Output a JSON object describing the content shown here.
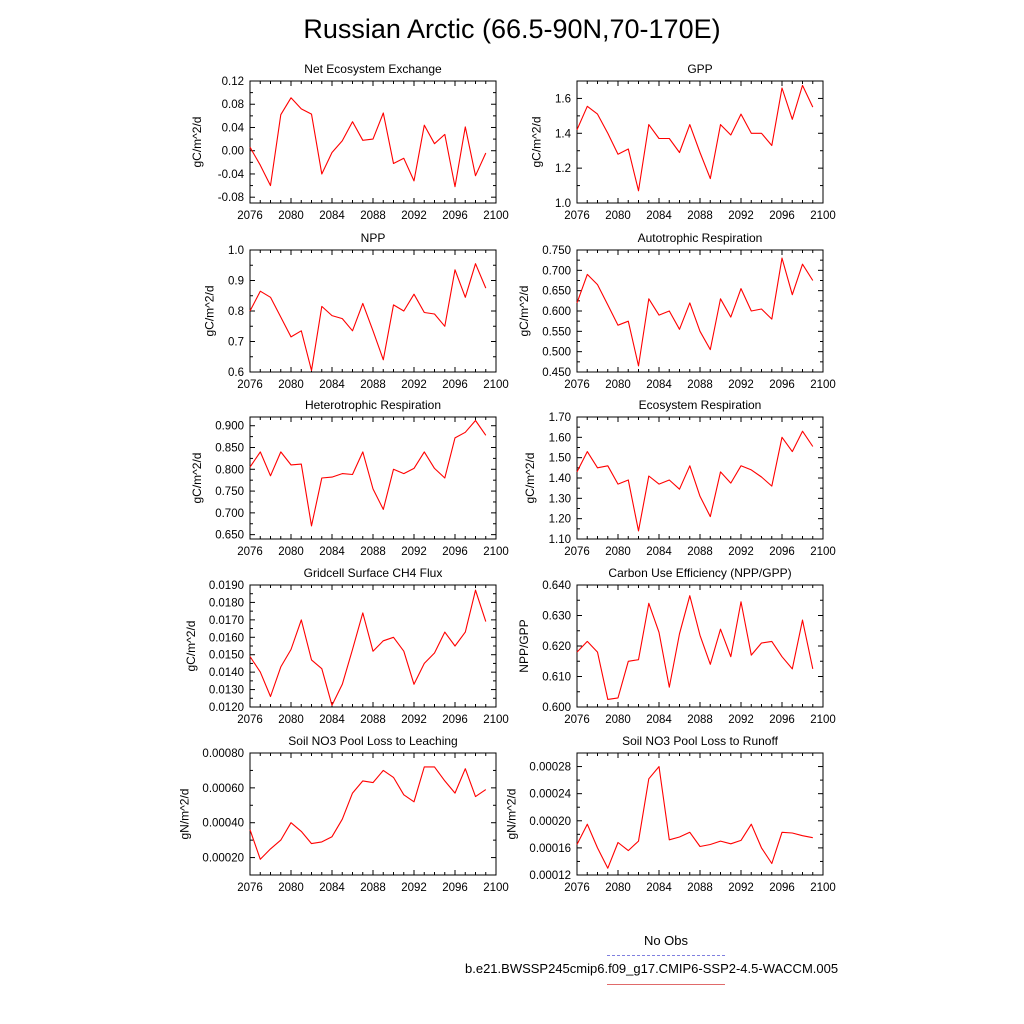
{
  "title": "Russian Arctic (66.5-90N,70-170E)",
  "colors": {
    "series": "#ff0000",
    "axis": "#000000",
    "obs": "#7f7fdf"
  },
  "legend": {
    "obs_label": "No Obs",
    "model_label": "b.e21.BWSSP245cmip6.f09_g17.CMIP6-SSP2-4.5-WACCM.005"
  },
  "chart_data": [
    {
      "type": "line",
      "title": "Net Ecosystem Exchange",
      "ylabel": "gC/m^2/d",
      "xlabel": "",
      "xlim": [
        2076,
        2100
      ],
      "ylim": [
        -0.09,
        0.12
      ],
      "xticks": [
        "2076",
        "2080",
        "2084",
        "2088",
        "2092",
        "2096",
        "2100"
      ],
      "yticks": [
        "-0.08",
        "-0.04",
        "0.00",
        "0.04",
        "0.08",
        "0.12"
      ],
      "ytick_values": [
        -0.08,
        -0.04,
        0.0,
        0.04,
        0.08,
        0.12
      ],
      "x": [
        2076,
        2077,
        2078,
        2079,
        2080,
        2081,
        2082,
        2083,
        2084,
        2085,
        2086,
        2087,
        2088,
        2089,
        2090,
        2091,
        2092,
        2093,
        2094,
        2095,
        2096,
        2097,
        2098,
        2099
      ],
      "values": [
        0.006,
        -0.025,
        -0.06,
        0.062,
        0.091,
        0.072,
        0.063,
        -0.04,
        -0.003,
        0.017,
        0.05,
        0.018,
        0.02,
        0.065,
        -0.022,
        -0.013,
        -0.052,
        0.044,
        0.012,
        0.028,
        -0.062,
        0.041,
        -0.043,
        -0.004
      ]
    },
    {
      "type": "line",
      "title": "GPP",
      "ylabel": "gC/m^2/d",
      "xlabel": "",
      "xlim": [
        2076,
        2100
      ],
      "ylim": [
        1.0,
        1.7
      ],
      "xticks": [
        "2076",
        "2080",
        "2084",
        "2088",
        "2092",
        "2096",
        "2100"
      ],
      "yticks": [
        "1.0",
        "1.2",
        "1.4",
        "1.6"
      ],
      "ytick_values": [
        1.0,
        1.2,
        1.4,
        1.6
      ],
      "x": [
        2076,
        2077,
        2078,
        2079,
        2080,
        2081,
        2082,
        2083,
        2084,
        2085,
        2086,
        2087,
        2088,
        2089,
        2090,
        2091,
        2092,
        2093,
        2094,
        2095,
        2096,
        2097,
        2098,
        2099
      ],
      "values": [
        1.42,
        1.555,
        1.51,
        1.4,
        1.28,
        1.31,
        1.07,
        1.45,
        1.37,
        1.37,
        1.29,
        1.45,
        1.29,
        1.14,
        1.45,
        1.39,
        1.51,
        1.4,
        1.4,
        1.33,
        1.66,
        1.48,
        1.675,
        1.55
      ]
    },
    {
      "type": "line",
      "title": "NPP",
      "ylabel": "gC/m^2/d",
      "xlabel": "",
      "xlim": [
        2076,
        2100
      ],
      "ylim": [
        0.6,
        1.0
      ],
      "xticks": [
        "2076",
        "2080",
        "2084",
        "2088",
        "2092",
        "2096",
        "2100"
      ],
      "yticks": [
        "0.6",
        "0.7",
        "0.8",
        "0.9",
        "1.0"
      ],
      "ytick_values": [
        0.6,
        0.7,
        0.8,
        0.9,
        1.0
      ],
      "x": [
        2076,
        2077,
        2078,
        2079,
        2080,
        2081,
        2082,
        2083,
        2084,
        2085,
        2086,
        2087,
        2088,
        2089,
        2090,
        2091,
        2092,
        2093,
        2094,
        2095,
        2096,
        2097,
        2098,
        2099
      ],
      "values": [
        0.8,
        0.865,
        0.845,
        0.78,
        0.715,
        0.735,
        0.605,
        0.815,
        0.785,
        0.775,
        0.735,
        0.825,
        0.735,
        0.64,
        0.82,
        0.8,
        0.855,
        0.795,
        0.79,
        0.75,
        0.935,
        0.845,
        0.955,
        0.875
      ]
    },
    {
      "type": "line",
      "title": "Autotrophic Respiration",
      "ylabel": "gC/m^2/d",
      "xlabel": "",
      "xlim": [
        2076,
        2100
      ],
      "ylim": [
        0.45,
        0.75
      ],
      "xticks": [
        "2076",
        "2080",
        "2084",
        "2088",
        "2092",
        "2096",
        "2100"
      ],
      "yticks": [
        "0.450",
        "0.500",
        "0.550",
        "0.600",
        "0.650",
        "0.700",
        "0.750"
      ],
      "ytick_values": [
        0.45,
        0.5,
        0.55,
        0.6,
        0.65,
        0.7,
        0.75
      ],
      "x": [
        2076,
        2077,
        2078,
        2079,
        2080,
        2081,
        2082,
        2083,
        2084,
        2085,
        2086,
        2087,
        2088,
        2089,
        2090,
        2091,
        2092,
        2093,
        2094,
        2095,
        2096,
        2097,
        2098,
        2099
      ],
      "values": [
        0.62,
        0.69,
        0.665,
        0.615,
        0.565,
        0.575,
        0.465,
        0.63,
        0.59,
        0.6,
        0.555,
        0.62,
        0.55,
        0.505,
        0.63,
        0.585,
        0.655,
        0.6,
        0.605,
        0.58,
        0.73,
        0.64,
        0.715,
        0.675
      ]
    },
    {
      "type": "line",
      "title": "Heterotrophic Respiration",
      "ylabel": "gC/m^2/d",
      "xlabel": "",
      "xlim": [
        2076,
        2100
      ],
      "ylim": [
        0.64,
        0.92
      ],
      "xticks": [
        "2076",
        "2080",
        "2084",
        "2088",
        "2092",
        "2096",
        "2100"
      ],
      "yticks": [
        "0.650",
        "0.700",
        "0.750",
        "0.800",
        "0.850",
        "0.900"
      ],
      "ytick_values": [
        0.65,
        0.7,
        0.75,
        0.8,
        0.85,
        0.9
      ],
      "x": [
        2076,
        2077,
        2078,
        2079,
        2080,
        2081,
        2082,
        2083,
        2084,
        2085,
        2086,
        2087,
        2088,
        2089,
        2090,
        2091,
        2092,
        2093,
        2094,
        2095,
        2096,
        2097,
        2098,
        2099
      ],
      "values": [
        0.805,
        0.84,
        0.785,
        0.84,
        0.81,
        0.812,
        0.67,
        0.78,
        0.782,
        0.79,
        0.788,
        0.84,
        0.755,
        0.708,
        0.8,
        0.79,
        0.802,
        0.84,
        0.802,
        0.78,
        0.872,
        0.885,
        0.912,
        0.878
      ]
    },
    {
      "type": "line",
      "title": "Ecosystem Respiration",
      "ylabel": "gC/m^2/d",
      "xlabel": "",
      "xlim": [
        2076,
        2100
      ],
      "ylim": [
        1.1,
        1.7
      ],
      "xticks": [
        "2076",
        "2080",
        "2084",
        "2088",
        "2092",
        "2096",
        "2100"
      ],
      "yticks": [
        "1.10",
        "1.20",
        "1.30",
        "1.40",
        "1.50",
        "1.60",
        "1.70"
      ],
      "ytick_values": [
        1.1,
        1.2,
        1.3,
        1.4,
        1.5,
        1.6,
        1.7
      ],
      "x": [
        2076,
        2077,
        2078,
        2079,
        2080,
        2081,
        2082,
        2083,
        2084,
        2085,
        2086,
        2087,
        2088,
        2089,
        2090,
        2091,
        2092,
        2093,
        2094,
        2095,
        2096,
        2097,
        2098,
        2099
      ],
      "values": [
        1.43,
        1.53,
        1.45,
        1.46,
        1.37,
        1.39,
        1.14,
        1.41,
        1.37,
        1.39,
        1.345,
        1.46,
        1.31,
        1.21,
        1.43,
        1.375,
        1.46,
        1.44,
        1.405,
        1.36,
        1.6,
        1.53,
        1.63,
        1.555
      ]
    },
    {
      "type": "line",
      "title": "Gridcell Surface CH4 Flux",
      "ylabel": "gC/m^2/d",
      "xlabel": "",
      "xlim": [
        2076,
        2100
      ],
      "ylim": [
        0.012,
        0.019
      ],
      "xticks": [
        "2076",
        "2080",
        "2084",
        "2088",
        "2092",
        "2096",
        "2100"
      ],
      "yticks": [
        "0.0120",
        "0.0130",
        "0.0140",
        "0.0150",
        "0.0160",
        "0.0170",
        "0.0180",
        "0.0190"
      ],
      "ytick_values": [
        0.012,
        0.013,
        0.014,
        0.015,
        0.016,
        0.017,
        0.018,
        0.019
      ],
      "x": [
        2076,
        2077,
        2078,
        2079,
        2080,
        2081,
        2082,
        2083,
        2084,
        2085,
        2086,
        2087,
        2088,
        2089,
        2090,
        2091,
        2092,
        2093,
        2094,
        2095,
        2096,
        2097,
        2098,
        2099
      ],
      "values": [
        0.0149,
        0.014,
        0.0126,
        0.0143,
        0.0153,
        0.017,
        0.0147,
        0.0142,
        0.0121,
        0.0133,
        0.0153,
        0.0174,
        0.0152,
        0.0158,
        0.016,
        0.0152,
        0.0133,
        0.0145,
        0.0151,
        0.0163,
        0.0155,
        0.0163,
        0.0187,
        0.0169
      ]
    },
    {
      "type": "line",
      "title": "Carbon Use Efficiency (NPP/GPP)",
      "ylabel": "NPP/GPP",
      "xlabel": "",
      "xlim": [
        2076,
        2100
      ],
      "ylim": [
        0.6,
        0.64
      ],
      "xticks": [
        "2076",
        "2080",
        "2084",
        "2088",
        "2092",
        "2096",
        "2100"
      ],
      "yticks": [
        "0.600",
        "0.610",
        "0.620",
        "0.630",
        "0.640"
      ],
      "ytick_values": [
        0.6,
        0.61,
        0.62,
        0.63,
        0.64
      ],
      "x": [
        2076,
        2077,
        2078,
        2079,
        2080,
        2081,
        2082,
        2083,
        2084,
        2085,
        2086,
        2087,
        2088,
        2089,
        2090,
        2091,
        2092,
        2093,
        2094,
        2095,
        2096,
        2097,
        2098,
        2099
      ],
      "values": [
        0.618,
        0.6215,
        0.618,
        0.6025,
        0.603,
        0.615,
        0.6155,
        0.634,
        0.6245,
        0.6065,
        0.624,
        0.6365,
        0.6235,
        0.614,
        0.6255,
        0.6165,
        0.6345,
        0.617,
        0.621,
        0.6215,
        0.6165,
        0.6125,
        0.6285,
        0.6125
      ]
    },
    {
      "type": "line",
      "title": "Soil NO3 Pool Loss to Leaching",
      "ylabel": "gN/m^2/d",
      "xlabel": "",
      "xlim": [
        2076,
        2100
      ],
      "ylim": [
        0.0001,
        0.0008
      ],
      "xticks": [
        "2076",
        "2080",
        "2084",
        "2088",
        "2092",
        "2096",
        "2100"
      ],
      "yticks": [
        "0.00020",
        "0.00040",
        "0.00060",
        "0.00080"
      ],
      "ytick_values": [
        0.0002,
        0.0004,
        0.0006,
        0.0008
      ],
      "x": [
        2076,
        2077,
        2078,
        2079,
        2080,
        2081,
        2082,
        2083,
        2084,
        2085,
        2086,
        2087,
        2088,
        2089,
        2090,
        2091,
        2092,
        2093,
        2094,
        2095,
        2096,
        2097,
        2098,
        2099
      ],
      "values": [
        0.00036,
        0.00019,
        0.00025,
        0.0003,
        0.0004,
        0.00035,
        0.00028,
        0.00029,
        0.00032,
        0.00042,
        0.00057,
        0.00064,
        0.00063,
        0.0007,
        0.00066,
        0.00056,
        0.00052,
        0.00072,
        0.00072,
        0.00064,
        0.00057,
        0.00071,
        0.00055,
        0.00059
      ]
    },
    {
      "type": "line",
      "title": "Soil NO3 Pool Loss to Runoff",
      "ylabel": "gN/m^2/d",
      "xlabel": "",
      "xlim": [
        2076,
        2100
      ],
      "ylim": [
        0.00012,
        0.0003
      ],
      "xticks": [
        "2076",
        "2080",
        "2084",
        "2088",
        "2092",
        "2096",
        "2100"
      ],
      "yticks": [
        "0.00012",
        "0.00016",
        "0.00020",
        "0.00024",
        "0.00028"
      ],
      "ytick_values": [
        0.00012,
        0.00016,
        0.0002,
        0.00024,
        0.00028
      ],
      "x": [
        2076,
        2077,
        2078,
        2079,
        2080,
        2081,
        2082,
        2083,
        2084,
        2085,
        2086,
        2087,
        2088,
        2089,
        2090,
        2091,
        2092,
        2093,
        2094,
        2095,
        2096,
        2097,
        2098,
        2099
      ],
      "values": [
        0.000165,
        0.000195,
        0.00016,
        0.00013,
        0.000168,
        0.000156,
        0.00017,
        0.000262,
        0.00028,
        0.000172,
        0.000176,
        0.000183,
        0.000162,
        0.000165,
        0.00017,
        0.000166,
        0.000171,
        0.000195,
        0.00016,
        0.000137,
        0.000183,
        0.000182,
        0.000178,
        0.000175
      ]
    }
  ]
}
